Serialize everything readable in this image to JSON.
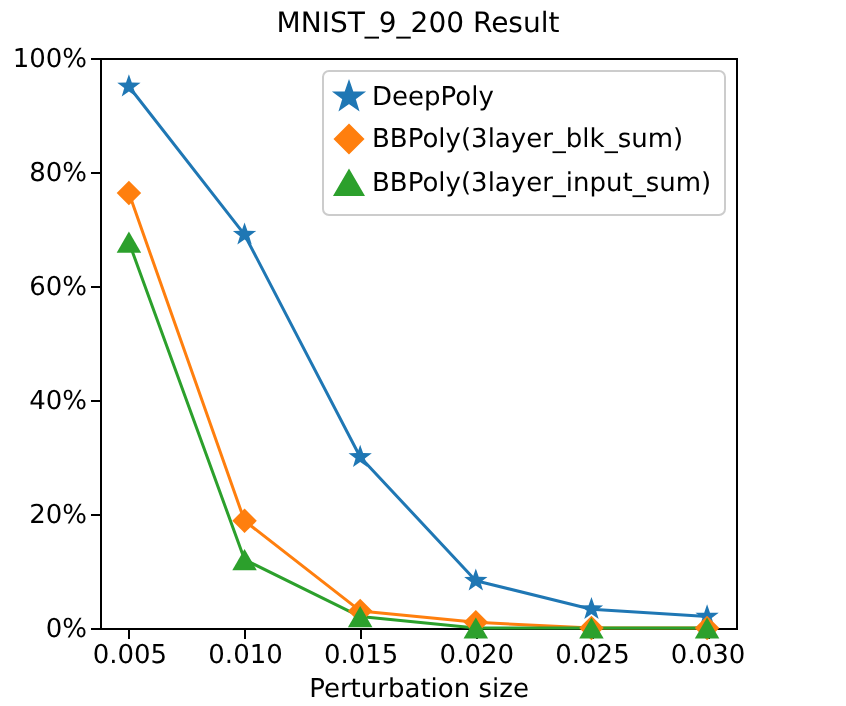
{
  "chart_data": {
    "type": "line",
    "title": "MNIST_9_200 Result",
    "xlabel": "Perturbation size",
    "x": [
      0.005,
      0.01,
      0.015,
      0.02,
      0.025,
      0.03
    ],
    "series": [
      {
        "name": "DeepPoly",
        "color": "#1f77b4",
        "marker": "star",
        "values": [
          95,
          69,
          30,
          8.3,
          3.3,
          2
        ]
      },
      {
        "name": "BBPoly(3layer_blk_sum)",
        "color": "#ff7f0e",
        "marker": "diamond",
        "values": [
          76.3,
          18.8,
          3,
          1,
          0,
          0
        ]
      },
      {
        "name": "BBPoly(3layer_input_sum)",
        "color": "#2ca02c",
        "marker": "triangle",
        "values": [
          67.7,
          12,
          2,
          0,
          0,
          0
        ]
      }
    ],
    "xlim": [
      0.00375,
      0.03125
    ],
    "xticks": [
      0.005,
      {
        "value": 0.01,
        "label": "0.010"
      },
      0.015,
      {
        "value": 0.02,
        "label": "0.020"
      },
      0.025,
      {
        "value": 0.03,
        "label": "0.030"
      }
    ],
    "ylim": [
      0,
      100
    ],
    "yticks": [
      {
        "value": 0,
        "label": "0%"
      },
      {
        "value": 20,
        "label": "20%"
      },
      {
        "value": 40,
        "label": "40%"
      },
      {
        "value": 60,
        "label": "60%"
      },
      {
        "value": 80,
        "label": "80%"
      },
      {
        "value": 100,
        "label": "100%"
      }
    ],
    "legend": "top right",
    "grid": false,
    "line_style": "solid"
  }
}
